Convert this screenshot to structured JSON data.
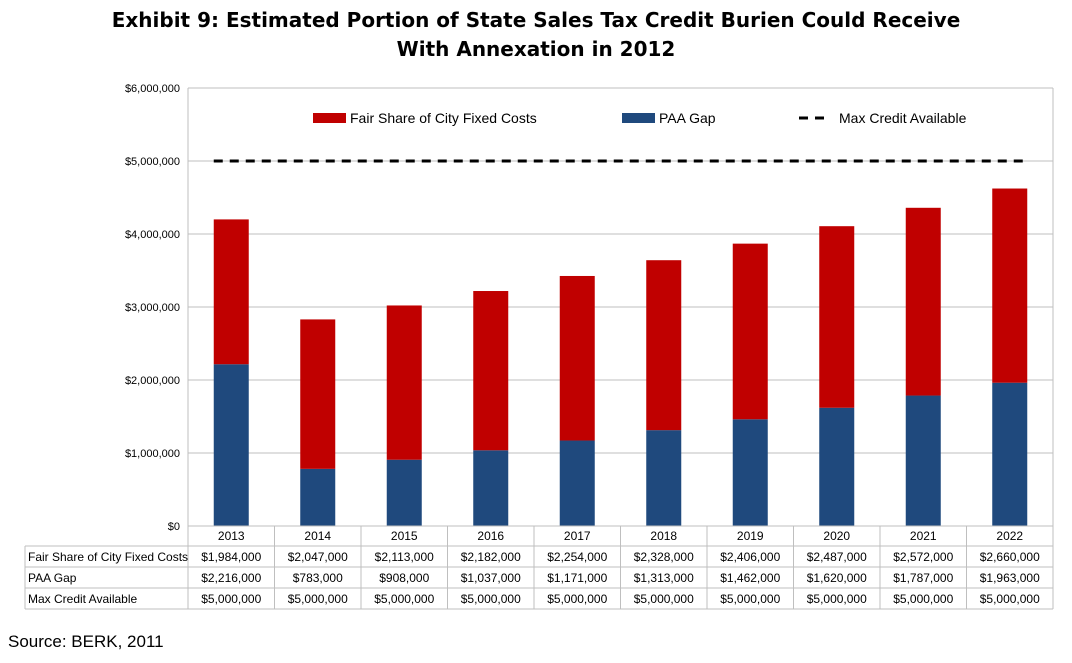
{
  "title_line1": "Exhibit 9: Estimated Portion of State Sales Tax Credit Burien Could Receive",
  "title_line2": "With Annexation in 2012",
  "source": "Source: BERK, 2011",
  "colors": {
    "fair_share": "#c00000",
    "paa_gap": "#1f497d",
    "max_credit": "#000000",
    "grid": "#bfbfbf"
  },
  "chart_data": {
    "type": "bar",
    "stacked": true,
    "categories": [
      "2013",
      "2014",
      "2015",
      "2016",
      "2017",
      "2018",
      "2019",
      "2020",
      "2021",
      "2022"
    ],
    "series": [
      {
        "name": "Fair Share of City Fixed Costs",
        "kind": "bar",
        "color": "#c00000",
        "values": [
          1984000,
          2047000,
          2113000,
          2182000,
          2254000,
          2328000,
          2406000,
          2487000,
          2572000,
          2660000
        ],
        "labels": [
          "$1,984,000",
          "$2,047,000",
          "$2,113,000",
          "$2,182,000",
          "$2,254,000",
          "$2,328,000",
          "$2,406,000",
          "$2,487,000",
          "$2,572,000",
          "$2,660,000"
        ]
      },
      {
        "name": "PAA Gap",
        "kind": "bar",
        "color": "#1f497d",
        "values": [
          2216000,
          783000,
          908000,
          1037000,
          1171000,
          1313000,
          1462000,
          1620000,
          1787000,
          1963000
        ],
        "labels": [
          "$2,216,000",
          "$783,000",
          "$908,000",
          "$1,037,000",
          "$1,171,000",
          "$1,313,000",
          "$1,462,000",
          "$1,620,000",
          "$1,787,000",
          "$1,963,000"
        ]
      },
      {
        "name": "Max Credit Available",
        "kind": "dashed-line",
        "color": "#000000",
        "values": [
          5000000,
          5000000,
          5000000,
          5000000,
          5000000,
          5000000,
          5000000,
          5000000,
          5000000,
          5000000
        ],
        "labels": [
          "$5,000,000",
          "$5,000,000",
          "$5,000,000",
          "$5,000,000",
          "$5,000,000",
          "$5,000,000",
          "$5,000,000",
          "$5,000,000",
          "$5,000,000",
          "$5,000,000"
        ]
      }
    ],
    "ylim": [
      0,
      6000000
    ],
    "yticks": [
      0,
      1000000,
      2000000,
      3000000,
      4000000,
      5000000,
      6000000
    ],
    "ytick_labels": [
      "$0",
      "$1,000,000",
      "$2,000,000",
      "$3,000,000",
      "$4,000,000",
      "$5,000,000",
      "$6,000,000"
    ],
    "grid": true,
    "legend": "top",
    "data_table": true
  }
}
